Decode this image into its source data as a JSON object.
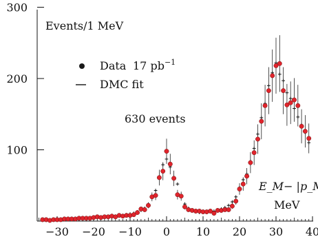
{
  "chart_data": {
    "type": "scatter",
    "x_range": [
      -35,
      40
    ],
    "y_range": [
      0,
      300
    ],
    "x_ticks": [
      -30,
      -20,
      -10,
      0,
      10,
      20,
      30,
      40
    ],
    "x_tick_labels": [
      "−30",
      "−20",
      "−10",
      "0",
      "10",
      "20",
      "30",
      "40"
    ],
    "y_ticks": [
      100,
      200,
      300
    ],
    "y_tick_labels": [
      "100",
      "200",
      "300"
    ],
    "ylabel": "Events/1 MeV",
    "xlabel_line1": "E_M− |p_M|",
    "xlabel_line2": "MeV",
    "annotation": "630 events",
    "legend": {
      "data_label": "Data",
      "data_luminosity": "17 pb",
      "data_luminosity_exp": "−1",
      "fit_label": "DMC fit"
    },
    "marker_color": "#e0242c",
    "data": {
      "x": [
        -34,
        -33,
        -32,
        -31,
        -30,
        -29,
        -28,
        -27,
        -26,
        -25,
        -24,
        -23,
        -22,
        -21,
        -20,
        -19,
        -18,
        -17,
        -16,
        -15,
        -14,
        -13,
        -12,
        -11,
        -10,
        -9,
        -8,
        -7,
        -6,
        -5,
        -4,
        -3,
        -2,
        -1,
        0,
        1,
        2,
        3,
        4,
        5,
        6,
        7,
        8,
        9,
        10,
        11,
        12,
        13,
        14,
        15,
        16,
        17,
        18,
        19,
        20,
        21,
        22,
        23,
        24,
        25,
        26,
        27,
        28,
        29,
        30,
        31,
        32,
        33,
        34,
        35,
        36,
        37,
        38,
        39
      ],
      "y": [
        2,
        2,
        1,
        2,
        2,
        2,
        3,
        3,
        3,
        3,
        4,
        4,
        4,
        4,
        5,
        6,
        5,
        6,
        6,
        7,
        6,
        8,
        7,
        8,
        8,
        9,
        12,
        17,
        16,
        22,
        34,
        36,
        61,
        70,
        98,
        80,
        60,
        37,
        35,
        20,
        16,
        15,
        14,
        14,
        13,
        13,
        14,
        11,
        15,
        15,
        16,
        16,
        21,
        28,
        45,
        52,
        63,
        82,
        96,
        115,
        140,
        162,
        183,
        204,
        218,
        221,
        183,
        163,
        166,
        170,
        162,
        133,
        126,
        116
      ]
    },
    "fit": {
      "x": [
        -34,
        -33,
        -32,
        -31,
        -30,
        -29,
        -28,
        -27,
        -26,
        -25,
        -24,
        -23,
        -22,
        -21,
        -20,
        -19,
        -18,
        -17,
        -16,
        -15,
        -14,
        -13,
        -12,
        -11,
        -10,
        -9,
        -8,
        -7,
        -6,
        -5,
        -4,
        -3,
        -2,
        -1,
        0,
        1,
        2,
        3,
        4,
        5,
        6,
        7,
        8,
        9,
        10,
        11,
        12,
        13,
        14,
        15,
        16,
        17,
        18,
        19,
        20,
        21,
        22,
        23,
        24,
        25,
        26,
        27,
        28,
        29,
        30,
        31,
        32,
        33,
        34,
        35,
        36,
        37,
        38,
        39
      ],
      "y": [
        1,
        1,
        1,
        2,
        2,
        2,
        2,
        3,
        3,
        3,
        3,
        4,
        4,
        4,
        5,
        5,
        5,
        6,
        6,
        6,
        7,
        7,
        8,
        9,
        10,
        11,
        13,
        15,
        18,
        24,
        33,
        43,
        61,
        79,
        87,
        76,
        61,
        52,
        35,
        24,
        18,
        15,
        13,
        12,
        12,
        12,
        13,
        14,
        15,
        17,
        19,
        22,
        27,
        34,
        47,
        58,
        66,
        84,
        102,
        122,
        145,
        165,
        190,
        208,
        222,
        206,
        197,
        180,
        172,
        158,
        146,
        135,
        124,
        110
      ]
    },
    "err_rel": 0.18
  }
}
